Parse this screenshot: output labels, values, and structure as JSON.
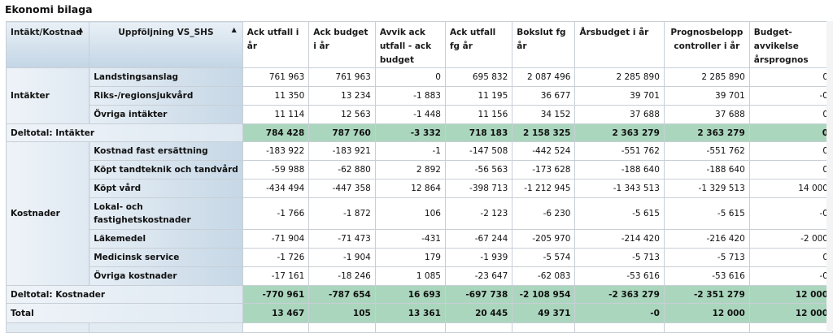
{
  "title": "Ekonomi bilaga",
  "headers": {
    "dim1": "Intäkt/Kostnad",
    "dim2": "Uppföljning VS_SHS",
    "sort_icon": "triangle-up-icon",
    "measures": [
      "Ack utfall i år",
      "Ack budget i år",
      "Avvik ack utfall - ack budget",
      "Ack utfall fg år",
      "Bokslut fg år",
      "Årsbudget i år",
      "Prognosbelopp controller i år",
      "Budget-avvikelse årsprognos"
    ]
  },
  "groups": [
    {
      "label": "Intäkter",
      "rows": [
        {
          "label": "Landstingsanslag",
          "values": [
            "761 963",
            "761 963",
            "0",
            "695 832",
            "2 087 496",
            "2 285 890",
            "2 285 890",
            "0"
          ]
        },
        {
          "label": "Riks-/regionsjukvård",
          "values": [
            "11 350",
            "13 234",
            "-1 883",
            "11 195",
            "36 677",
            "39 701",
            "39 701",
            "-0"
          ]
        },
        {
          "label": "Övriga intäkter",
          "values": [
            "11 114",
            "12 563",
            "-1 448",
            "11 156",
            "34 152",
            "37 688",
            "37 688",
            "0"
          ]
        }
      ],
      "subtotal": {
        "label": "Deltotal: Intäkter",
        "values": [
          "784 428",
          "787 760",
          "-3 332",
          "718 183",
          "2 158 325",
          "2 363 279",
          "2 363 279",
          "0"
        ]
      }
    },
    {
      "label": "Kostnader",
      "rows": [
        {
          "label": "Kostnad fast ersättning",
          "values": [
            "-183 922",
            "-183 921",
            "-1",
            "-147 508",
            "-442 524",
            "-551 762",
            "-551 762",
            "0"
          ]
        },
        {
          "label": "Köpt tandteknik och tandvård",
          "values": [
            "-59 988",
            "-62 880",
            "2 892",
            "-56 563",
            "-173 628",
            "-188 640",
            "-188 640",
            "0"
          ]
        },
        {
          "label": "Köpt vård",
          "values": [
            "-434 494",
            "-447 358",
            "12 864",
            "-398 713",
            "-1 212 945",
            "-1 343 513",
            "-1 329 513",
            "14 000"
          ]
        },
        {
          "label": "Lokal- och fastighetskostnader",
          "values": [
            "-1 766",
            "-1 872",
            "106",
            "-2 123",
            "-6 230",
            "-5 615",
            "-5 615",
            "-0"
          ]
        },
        {
          "label": "Läkemedel",
          "values": [
            "-71 904",
            "-71 473",
            "-431",
            "-67 244",
            "-205 970",
            "-214 420",
            "-216 420",
            "-2 000"
          ]
        },
        {
          "label": "Medicinsk service",
          "values": [
            "-1 726",
            "-1 904",
            "179",
            "-1 939",
            "-5 574",
            "-5 713",
            "-5 713",
            "0"
          ]
        },
        {
          "label": "Övriga kostnader",
          "values": [
            "-17 161",
            "-18 246",
            "1 085",
            "-23 647",
            "-62 083",
            "-53 616",
            "-53 616",
            "-0"
          ]
        }
      ],
      "subtotal": {
        "label": "Deltotal: Kostnader",
        "values": [
          "-770 961",
          "-787 654",
          "16 693",
          "-697 738",
          "-2 108 954",
          "-2 363 279",
          "-2 351 279",
          "12 000"
        ]
      }
    }
  ],
  "total": {
    "label": "Total",
    "values": [
      "13 467",
      "105",
      "13 361",
      "20 445",
      "49 371",
      "-0",
      "12 000",
      "12 000"
    ]
  },
  "colors": {
    "subtotal_fill": "#abd6be",
    "header_fill": "#c3d5e5",
    "grid": "#c8cfd6"
  }
}
